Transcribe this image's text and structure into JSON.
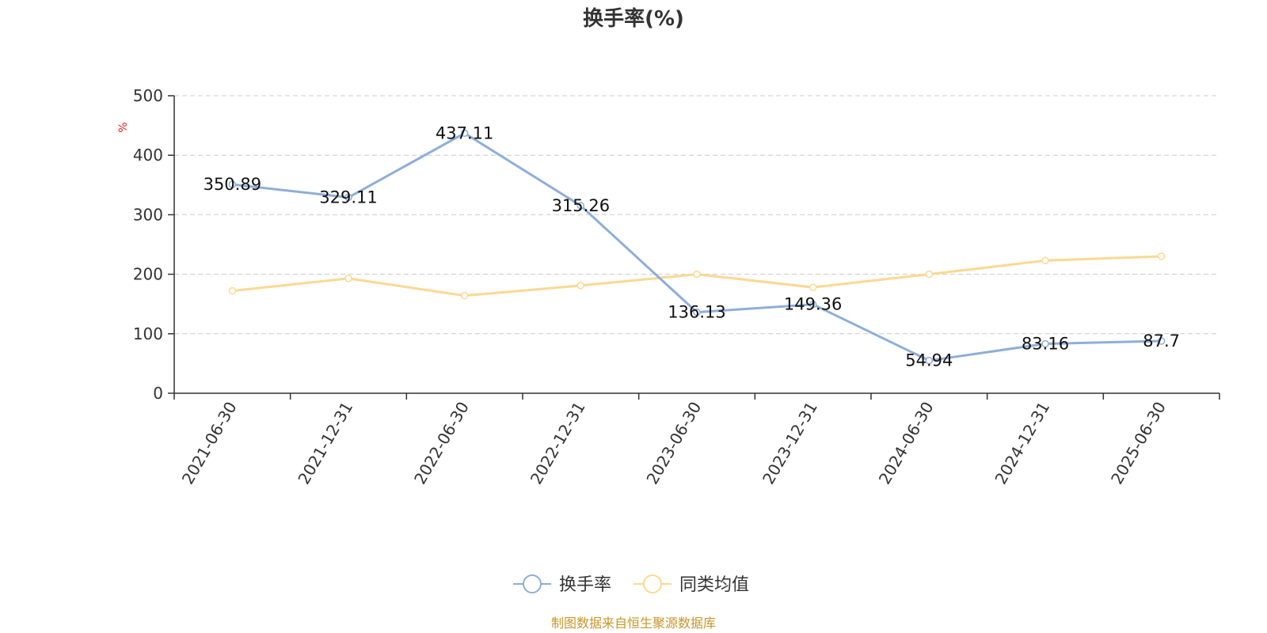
{
  "chart_data": {
    "type": "line",
    "title": "换手率(%)",
    "ylabel": "%",
    "xlabel": "",
    "ylim": [
      0,
      500
    ],
    "yticks": [
      0,
      100,
      200,
      300,
      400,
      500
    ],
    "grid": true,
    "legend_position": "bottom",
    "categories": [
      "2021-06-30",
      "2021-12-31",
      "2022-06-30",
      "2022-12-31",
      "2023-06-30",
      "2023-12-31",
      "2024-06-30",
      "2024-12-31",
      "2025-06-30"
    ],
    "series": [
      {
        "name": "换手率",
        "color": "#8eaed8",
        "show_labels": true,
        "values": [
          350.89,
          329.11,
          437.11,
          315.26,
          136.13,
          149.36,
          54.94,
          83.16,
          87.7
        ],
        "labels": [
          "350.89",
          "329.11",
          "437.11",
          "315.26",
          "136.13",
          "149.36",
          "54.94",
          "83.16",
          "87.7"
        ]
      },
      {
        "name": "同类均值",
        "color": "#fcd891",
        "show_labels": false,
        "values": [
          172,
          193,
          164,
          181,
          200,
          178,
          200,
          223,
          230
        ]
      }
    ],
    "source": "制图数据来自恒生聚源数据库"
  }
}
